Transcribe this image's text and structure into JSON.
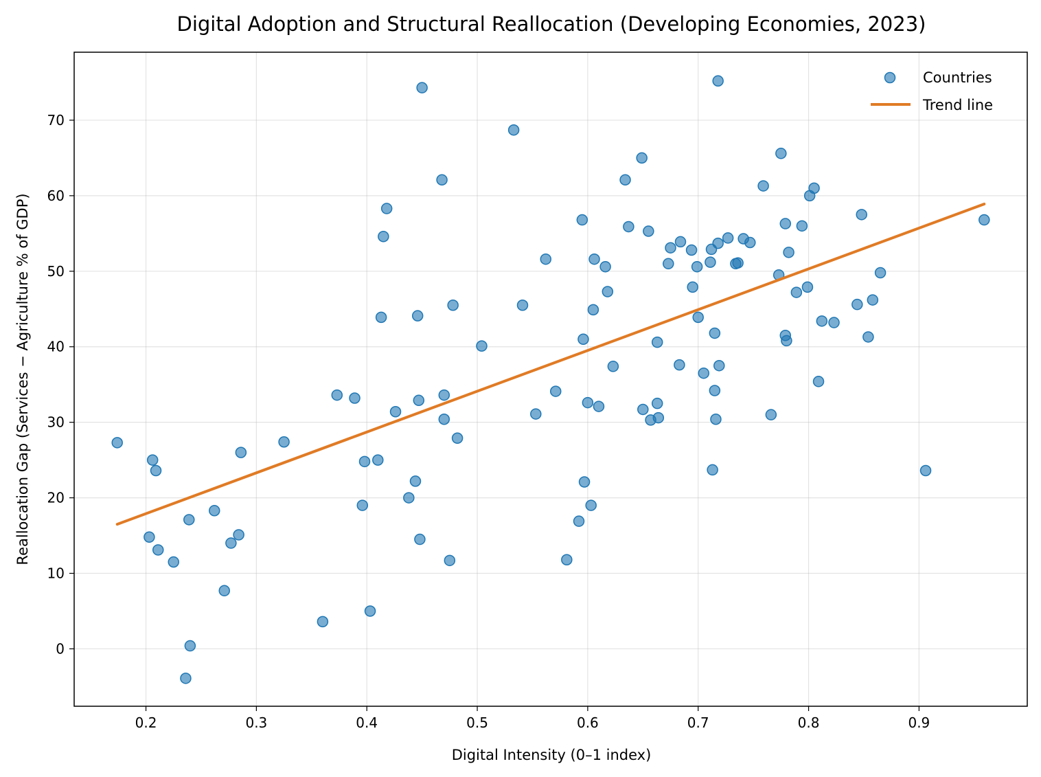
{
  "chart_data": {
    "type": "scatter",
    "title": "Digital Adoption and Structural Reallocation (Developing Economies, 2023)",
    "xlabel": "Digital Intensity (0–1 index)",
    "ylabel": "Reallocation Gap (Services − Agriculture % of GDP)",
    "xlim": [
      0.135,
      0.998
    ],
    "ylim": [
      -7.6,
      79.0
    ],
    "xticks": [
      0.2,
      0.3,
      0.4,
      0.5,
      0.6,
      0.7,
      0.8,
      0.9
    ],
    "xtick_labels": [
      "0.2",
      "0.3",
      "0.4",
      "0.5",
      "0.6",
      "0.7",
      "0.8",
      "0.9"
    ],
    "yticks": [
      0,
      10,
      20,
      30,
      40,
      50,
      60,
      70
    ],
    "ytick_labels": [
      "0",
      "10",
      "20",
      "30",
      "40",
      "50",
      "60",
      "70"
    ],
    "grid": true,
    "legend_position": "top-right",
    "colors": {
      "points": "#1f77b4",
      "trend": "#e07b25"
    },
    "series": [
      {
        "name": "Countries",
        "kind": "scatter",
        "points": [
          [
            0.174,
            27.3
          ],
          [
            0.206,
            25.0
          ],
          [
            0.209,
            23.6
          ],
          [
            0.203,
            14.8
          ],
          [
            0.211,
            13.1
          ],
          [
            0.225,
            11.5
          ],
          [
            0.239,
            17.1
          ],
          [
            0.24,
            0.4
          ],
          [
            0.236,
            -3.9
          ],
          [
            0.262,
            18.3
          ],
          [
            0.271,
            7.7
          ],
          [
            0.277,
            14.0
          ],
          [
            0.284,
            15.1
          ],
          [
            0.286,
            26.0
          ],
          [
            0.325,
            27.4
          ],
          [
            0.36,
            3.6
          ],
          [
            0.373,
            33.6
          ],
          [
            0.389,
            33.2
          ],
          [
            0.396,
            19.0
          ],
          [
            0.398,
            24.8
          ],
          [
            0.403,
            5.0
          ],
          [
            0.41,
            25.0
          ],
          [
            0.413,
            43.9
          ],
          [
            0.415,
            54.6
          ],
          [
            0.418,
            58.3
          ],
          [
            0.426,
            31.4
          ],
          [
            0.438,
            20.0
          ],
          [
            0.444,
            22.2
          ],
          [
            0.446,
            44.1
          ],
          [
            0.447,
            32.9
          ],
          [
            0.448,
            14.5
          ],
          [
            0.45,
            74.3
          ],
          [
            0.468,
            62.1
          ],
          [
            0.47,
            30.4
          ],
          [
            0.47,
            33.6
          ],
          [
            0.475,
            11.7
          ],
          [
            0.478,
            45.5
          ],
          [
            0.482,
            27.9
          ],
          [
            0.504,
            40.1
          ],
          [
            0.533,
            68.7
          ],
          [
            0.541,
            45.5
          ],
          [
            0.553,
            31.1
          ],
          [
            0.562,
            51.6
          ],
          [
            0.571,
            34.1
          ],
          [
            0.581,
            11.8
          ],
          [
            0.592,
            16.9
          ],
          [
            0.595,
            56.8
          ],
          [
            0.596,
            41.0
          ],
          [
            0.597,
            22.1
          ],
          [
            0.6,
            32.6
          ],
          [
            0.603,
            19.0
          ],
          [
            0.605,
            44.9
          ],
          [
            0.606,
            51.6
          ],
          [
            0.61,
            32.1
          ],
          [
            0.616,
            50.6
          ],
          [
            0.618,
            47.3
          ],
          [
            0.623,
            37.4
          ],
          [
            0.634,
            62.1
          ],
          [
            0.637,
            55.9
          ],
          [
            0.649,
            65.0
          ],
          [
            0.65,
            31.7
          ],
          [
            0.655,
            55.3
          ],
          [
            0.657,
            30.3
          ],
          [
            0.663,
            40.6
          ],
          [
            0.663,
            32.5
          ],
          [
            0.664,
            30.6
          ],
          [
            0.673,
            51.0
          ],
          [
            0.675,
            53.1
          ],
          [
            0.683,
            37.6
          ],
          [
            0.684,
            53.9
          ],
          [
            0.694,
            52.8
          ],
          [
            0.695,
            47.9
          ],
          [
            0.699,
            50.6
          ],
          [
            0.7,
            43.9
          ],
          [
            0.705,
            36.5
          ],
          [
            0.711,
            51.2
          ],
          [
            0.712,
            52.9
          ],
          [
            0.713,
            23.7
          ],
          [
            0.715,
            41.8
          ],
          [
            0.715,
            34.2
          ],
          [
            0.716,
            30.4
          ],
          [
            0.718,
            53.7
          ],
          [
            0.718,
            75.2
          ],
          [
            0.719,
            37.5
          ],
          [
            0.727,
            54.4
          ],
          [
            0.734,
            51.0
          ],
          [
            0.736,
            51.1
          ],
          [
            0.741,
            54.3
          ],
          [
            0.747,
            53.8
          ],
          [
            0.759,
            61.3
          ],
          [
            0.766,
            31.0
          ],
          [
            0.773,
            49.5
          ],
          [
            0.775,
            65.6
          ],
          [
            0.779,
            56.3
          ],
          [
            0.779,
            41.5
          ],
          [
            0.78,
            40.8
          ],
          [
            0.782,
            52.5
          ],
          [
            0.789,
            47.2
          ],
          [
            0.794,
            56.0
          ],
          [
            0.799,
            47.9
          ],
          [
            0.801,
            60.0
          ],
          [
            0.805,
            61.0
          ],
          [
            0.809,
            35.4
          ],
          [
            0.812,
            43.4
          ],
          [
            0.823,
            43.2
          ],
          [
            0.844,
            45.6
          ],
          [
            0.848,
            57.5
          ],
          [
            0.854,
            41.3
          ],
          [
            0.858,
            46.2
          ],
          [
            0.865,
            49.8
          ],
          [
            0.906,
            23.6
          ],
          [
            0.959,
            56.8
          ]
        ]
      },
      {
        "name": "Trend line",
        "kind": "line",
        "points": [
          [
            0.174,
            16.5
          ],
          [
            0.959,
            58.9
          ]
        ]
      }
    ]
  }
}
